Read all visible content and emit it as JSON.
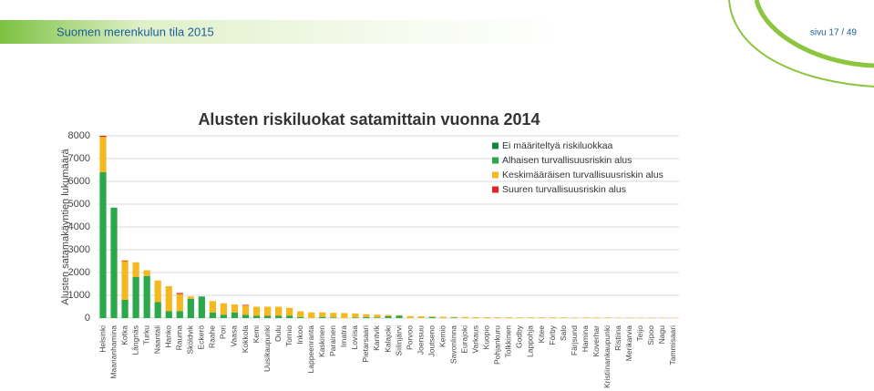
{
  "header": {
    "title": "Suomen merenkulun tila 2015",
    "page": "sivu 17 / 49"
  },
  "chart_data": {
    "type": "stacked-bar",
    "title": "Alusten riskiluokat satamittain vuonna 2014",
    "y_label": "Alusten satamakäyntien lukumäärä",
    "categories": [
      "Helsinki",
      "Maarianhamina",
      "Kotka",
      "Långnäs",
      "Turku",
      "Naantali",
      "Hanko",
      "Rauma",
      "Sköldvik",
      "Eckerö",
      "Raahe",
      "Pori",
      "Vaasa",
      "Kokkola",
      "Kemi",
      "Uusikaupunki",
      "Oulu",
      "Tornio",
      "Inkoo",
      "Lappeenranta",
      "Kaskinen",
      "Parainen",
      "Imatra",
      "Loviisa",
      "Pietarsaari",
      "Kantvik",
      "Kalajoki",
      "Siilinjärvi",
      "Porvoo",
      "Joensuu",
      "Joutseno",
      "Kemiö",
      "Savonlinna",
      "Eurajoki",
      "Varkaus",
      "Kuopio",
      "Pohjankuru",
      "Tolkkinen",
      "Godby",
      "Lappohja",
      "Kitee",
      "Förby",
      "Salo",
      "Färjsund",
      "Hamina",
      "Koverhar",
      "Kristiinankaupunki",
      "Ristiina",
      "Merikarvia",
      "Teijo",
      "Sipoo",
      "Nagu",
      "Tammisaari"
    ],
    "series": [
      {
        "name": "Ei määriteltyä riskiluokkaa",
        "color": "#0f8a3c",
        "values": [
          0,
          0,
          0,
          0,
          0,
          0,
          0,
          0,
          0,
          0,
          0,
          0,
          0,
          0,
          0,
          0,
          0,
          0,
          0,
          0,
          0,
          0,
          0,
          0,
          0,
          0,
          0,
          0,
          0,
          0,
          0,
          0,
          0,
          0,
          0,
          0,
          0,
          0,
          0,
          0,
          0,
          0,
          0,
          0,
          0,
          0,
          0,
          0,
          0,
          0,
          0,
          0,
          0
        ]
      },
      {
        "name": "Alhaisen turvallisuusriskin alus",
        "color": "#2aa84a",
        "values": [
          6400,
          4850,
          800,
          1800,
          1850,
          700,
          300,
          300,
          850,
          950,
          250,
          150,
          250,
          150,
          100,
          100,
          100,
          100,
          50,
          0,
          50,
          30,
          0,
          20,
          50,
          30,
          80,
          100,
          0,
          0,
          40,
          0,
          30,
          0,
          0,
          0,
          0,
          0,
          0,
          0,
          0,
          0,
          0,
          0,
          0,
          0,
          0,
          0,
          0,
          0,
          0,
          0,
          0
        ]
      },
      {
        "name": "Keskimääräisen turvallisuusriskin alus",
        "color": "#f6b820",
        "values": [
          1550,
          0,
          1700,
          650,
          250,
          950,
          1100,
          750,
          100,
          0,
          500,
          500,
          350,
          400,
          400,
          400,
          400,
          350,
          250,
          250,
          200,
          200,
          220,
          180,
          120,
          120,
          60,
          30,
          90,
          80,
          30,
          60,
          20,
          50,
          40,
          40,
          35,
          35,
          30,
          30,
          30,
          30,
          30,
          25,
          25,
          25,
          25,
          20,
          20,
          20,
          20,
          15,
          15
        ]
      },
      {
        "name": "Suuren turvallisuusriskin alus",
        "color": "#e52421",
        "values": [
          50,
          0,
          30,
          0,
          0,
          0,
          0,
          50,
          0,
          0,
          0,
          0,
          0,
          30,
          0,
          0,
          0,
          0,
          0,
          0,
          0,
          0,
          0,
          0,
          0,
          0,
          0,
          0,
          0,
          0,
          0,
          0,
          0,
          0,
          0,
          0,
          0,
          0,
          0,
          0,
          0,
          0,
          0,
          0,
          0,
          0,
          0,
          0,
          0,
          0,
          0,
          0,
          0
        ]
      }
    ],
    "ylim": [
      0,
      8000
    ],
    "yticks": [
      0,
      1000,
      2000,
      3000,
      4000,
      5000,
      6000,
      7000,
      8000
    ],
    "grid": true
  }
}
